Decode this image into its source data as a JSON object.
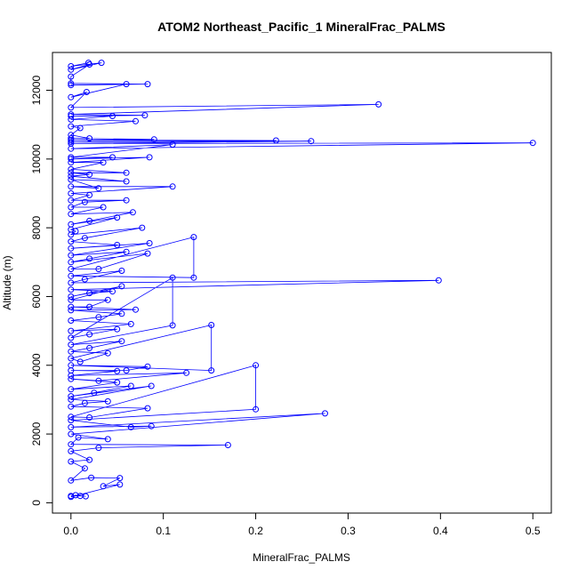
{
  "chart_data": {
    "type": "line",
    "title": "ATOM2 Northeast_Pacific_1 MineralFrac_PALMS",
    "xlabel": "MineralFrac_PALMS",
    "ylabel": "Altitude (m)",
    "xlim": [
      -0.02,
      0.52
    ],
    "ylim": [
      -300,
      13100
    ],
    "x_ticks": [
      0.0,
      0.1,
      0.2,
      0.3,
      0.4,
      0.5
    ],
    "x_tick_labels": [
      "0.0",
      "0.1",
      "0.2",
      "0.3",
      "0.4",
      "0.5"
    ],
    "y_ticks": [
      0,
      2000,
      4000,
      6000,
      8000,
      10000,
      12000
    ],
    "y_tick_labels": [
      "0",
      "2000",
      "4000",
      "6000",
      "8000",
      "10000",
      "12000"
    ],
    "grid": false,
    "color": "#0000ff",
    "marker": "open-circle",
    "series": [
      {
        "points": [
          [
            0.0,
            200
          ],
          [
            0.01,
            200
          ],
          [
            0.016,
            190
          ],
          [
            0.005,
            220
          ],
          [
            0.0,
            170
          ],
          [
            0.053,
            530
          ],
          [
            0.035,
            480
          ],
          [
            0.053,
            720
          ],
          [
            0.022,
            730
          ],
          [
            0.0,
            650
          ],
          [
            0.015,
            1000
          ],
          [
            0.0,
            1200
          ],
          [
            0.02,
            1250
          ],
          [
            0.0,
            1500
          ],
          [
            0.03,
            1600
          ],
          [
            0.17,
            1680
          ],
          [
            0.0,
            1700
          ],
          [
            0.008,
            1900
          ],
          [
            0.04,
            1850
          ],
          [
            0.0,
            2000
          ],
          [
            0.275,
            2600
          ],
          [
            0.0,
            2200
          ],
          [
            0.087,
            2230
          ],
          [
            0.065,
            2200
          ],
          [
            0.0,
            2400
          ],
          [
            0.2,
            2720
          ],
          [
            0.2,
            4000
          ],
          [
            0.0,
            2500
          ],
          [
            0.02,
            2480
          ],
          [
            0.083,
            2750
          ],
          [
            0.0,
            2800
          ],
          [
            0.015,
            2900
          ],
          [
            0.04,
            2950
          ],
          [
            0.0,
            3000
          ],
          [
            0.087,
            3400
          ],
          [
            0.0,
            3100
          ],
          [
            0.025,
            3200
          ],
          [
            0.065,
            3400
          ],
          [
            0.0,
            3300
          ],
          [
            0.05,
            3500
          ],
          [
            0.0,
            3600
          ],
          [
            0.03,
            3550
          ],
          [
            0.125,
            3780
          ],
          [
            0.0,
            3700
          ],
          [
            0.05,
            3830
          ],
          [
            0.0,
            3850
          ],
          [
            0.06,
            3850
          ],
          [
            0.083,
            3960
          ],
          [
            0.0,
            4000
          ],
          [
            0.152,
            3850
          ],
          [
            0.152,
            5170
          ],
          [
            0.0,
            4200
          ],
          [
            0.01,
            4100
          ],
          [
            0.04,
            4350
          ],
          [
            0.0,
            4400
          ],
          [
            0.02,
            4500
          ],
          [
            0.055,
            4700
          ],
          [
            0.0,
            4600
          ],
          [
            0.11,
            5160
          ],
          [
            0.11,
            6550
          ],
          [
            0.0,
            4800
          ],
          [
            0.02,
            4900
          ],
          [
            0.05,
            5050
          ],
          [
            0.0,
            5000
          ],
          [
            0.065,
            5200
          ],
          [
            0.0,
            5300
          ],
          [
            0.03,
            5400
          ],
          [
            0.055,
            5500
          ],
          [
            0.0,
            5600
          ],
          [
            0.07,
            5620
          ],
          [
            0.0,
            5700
          ],
          [
            0.02,
            5700
          ],
          [
            0.04,
            5900
          ],
          [
            0.0,
            5900
          ],
          [
            0.055,
            6300
          ],
          [
            0.0,
            6000
          ],
          [
            0.02,
            6100
          ],
          [
            0.045,
            6150
          ],
          [
            0.0,
            6200
          ],
          [
            0.398,
            6470
          ],
          [
            0.0,
            6400
          ],
          [
            0.015,
            6500
          ],
          [
            0.055,
            6750
          ],
          [
            0.0,
            6600
          ],
          [
            0.133,
            6550
          ],
          [
            0.133,
            7730
          ],
          [
            0.0,
            6800
          ],
          [
            0.03,
            6800
          ],
          [
            0.083,
            7250
          ],
          [
            0.0,
            7000
          ],
          [
            0.02,
            7100
          ],
          [
            0.06,
            7300
          ],
          [
            0.0,
            7200
          ],
          [
            0.085,
            7550
          ],
          [
            0.0,
            7400
          ],
          [
            0.05,
            7500
          ],
          [
            0.0,
            7600
          ],
          [
            0.015,
            7700
          ],
          [
            0.077,
            8000
          ],
          [
            0.0,
            7800
          ],
          [
            0.005,
            7900
          ],
          [
            0.0,
            7950
          ],
          [
            0.05,
            8300
          ],
          [
            0.0,
            8100
          ],
          [
            0.02,
            8200
          ],
          [
            0.067,
            8450
          ],
          [
            0.0,
            8400
          ],
          [
            0.035,
            8600
          ],
          [
            0.0,
            8600
          ],
          [
            0.015,
            8750
          ],
          [
            0.06,
            8800
          ],
          [
            0.0,
            8800
          ],
          [
            0.02,
            8950
          ],
          [
            0.0,
            9000
          ],
          [
            0.11,
            9200
          ],
          [
            0.0,
            9200
          ],
          [
            0.03,
            9150
          ],
          [
            0.0,
            9400
          ],
          [
            0.06,
            9350
          ],
          [
            0.0,
            9500
          ],
          [
            0.02,
            9550
          ],
          [
            0.0,
            9600
          ],
          [
            0.06,
            9600
          ],
          [
            0.0,
            9700
          ],
          [
            0.035,
            9900
          ],
          [
            0.0,
            9900
          ],
          [
            0.085,
            10050
          ],
          [
            0.0,
            10000
          ],
          [
            0.045,
            10050
          ],
          [
            0.0,
            10050
          ],
          [
            0.11,
            10420
          ],
          [
            0.0,
            10300
          ],
          [
            0.5,
            10470
          ],
          [
            0.0,
            10450
          ],
          [
            0.26,
            10520
          ],
          [
            0.0,
            10500
          ],
          [
            0.222,
            10540
          ],
          [
            0.0,
            10550
          ],
          [
            0.09,
            10570
          ],
          [
            0.0,
            10600
          ],
          [
            0.02,
            10600
          ],
          [
            0.0,
            10700
          ],
          [
            0.01,
            10900
          ],
          [
            0.0,
            10950
          ],
          [
            0.07,
            11100
          ],
          [
            0.0,
            11150
          ],
          [
            0.045,
            11250
          ],
          [
            0.0,
            11250
          ],
          [
            0.08,
            11270
          ],
          [
            0.0,
            11300
          ],
          [
            0.333,
            11590
          ],
          [
            0.0,
            11500
          ],
          [
            0.017,
            11950
          ],
          [
            0.0,
            11800
          ],
          [
            0.06,
            12180
          ],
          [
            0.0,
            12150
          ],
          [
            0.083,
            12180
          ],
          [
            0.0,
            12200
          ],
          [
            0.0,
            12400
          ],
          [
            0.02,
            12750
          ],
          [
            0.0,
            12600
          ],
          [
            0.033,
            12800
          ],
          [
            0.0,
            12700
          ],
          [
            0.019,
            12800
          ]
        ]
      }
    ]
  }
}
